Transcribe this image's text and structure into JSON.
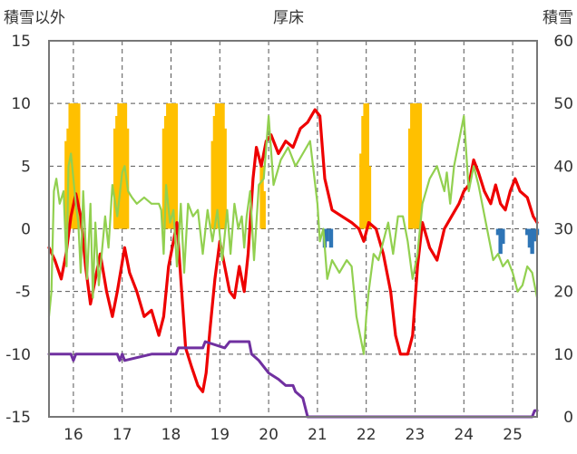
{
  "chart_data": {
    "type": "line",
    "title": "厚床",
    "ylabel_left": "積雪以外",
    "ylabel_right": "積雪",
    "ylim_left": [
      -15,
      15
    ],
    "ylim_right": [
      0,
      60
    ],
    "xlim": [
      15.5,
      25.5
    ],
    "yticks_left": [
      "15",
      "10",
      "5",
      "0",
      "-5",
      "-10",
      "-15"
    ],
    "yticks_right": [
      "60",
      "50",
      "40",
      "30",
      "20",
      "10",
      "0"
    ],
    "xticks": [
      "16",
      "17",
      "18",
      "19",
      "20",
      "21",
      "22",
      "23",
      "24",
      "25"
    ],
    "colors": {
      "red": "#ee0000",
      "green": "#92d050",
      "purple": "#7030a0",
      "orange": "#ffc000",
      "blue": "#2e75b6",
      "grid": "#555555",
      "frame": "#777777"
    },
    "series": [
      {
        "color": "red",
        "axis": "left",
        "x": [
          15.5,
          15.62,
          15.75,
          15.85,
          15.95,
          16.05,
          16.15,
          16.25,
          16.35,
          16.45,
          16.55,
          16.68,
          16.8,
          16.9,
          17.05,
          17.15,
          17.3,
          17.45,
          17.6,
          17.75,
          17.85,
          17.95,
          18.05,
          18.12,
          18.2,
          18.3,
          18.42,
          18.55,
          18.65,
          18.72,
          18.8,
          18.9,
          19.0,
          19.1,
          19.2,
          19.3,
          19.4,
          19.5,
          19.58,
          19.68,
          19.75,
          19.85,
          19.95,
          20.05,
          20.2,
          20.35,
          20.5,
          20.65,
          20.8,
          20.95,
          21.05,
          21.15,
          21.3,
          21.5,
          21.7,
          21.85,
          21.95,
          22.05,
          22.2,
          22.35,
          22.5,
          22.6,
          22.7,
          22.85,
          22.95,
          23.05,
          23.15,
          23.3,
          23.45,
          23.6,
          23.75,
          23.9,
          24.0,
          24.1,
          24.2,
          24.3,
          24.42,
          24.55,
          24.65,
          24.75,
          24.85,
          24.95,
          25.05,
          25.15,
          25.3,
          25.42,
          25.5
        ],
        "y": [
          -1.5,
          -2.5,
          -4.0,
          -2.0,
          1.0,
          2.8,
          1.0,
          -3.0,
          -6.0,
          -4.0,
          -2.0,
          -5.0,
          -7.0,
          -5.0,
          -1.5,
          -3.5,
          -5.0,
          -7.0,
          -6.5,
          -8.5,
          -7.0,
          -3.0,
          -1.0,
          0.5,
          -4.0,
          -9.5,
          -11.0,
          -12.5,
          -13.0,
          -11.5,
          -8.0,
          -4.0,
          -1.0,
          -3.0,
          -5.0,
          -5.5,
          -3.0,
          -5.0,
          -2.0,
          4.0,
          6.5,
          5.0,
          7.0,
          7.5,
          6.0,
          7.0,
          6.5,
          8.0,
          8.5,
          9.5,
          9.0,
          4.0,
          1.5,
          1.0,
          0.5,
          0.0,
          -1.0,
          0.5,
          0.0,
          -2.0,
          -5.0,
          -8.5,
          -10.0,
          -10.0,
          -8.5,
          -3.0,
          0.5,
          -1.5,
          -2.5,
          0.0,
          1.0,
          2.0,
          3.0,
          3.5,
          5.5,
          4.5,
          3.0,
          2.0,
          3.5,
          2.0,
          1.5,
          3.0,
          4.0,
          3.0,
          2.5,
          1.0,
          0.5
        ]
      },
      {
        "color": "green",
        "axis": "left",
        "x": [
          15.5,
          15.55,
          15.6,
          15.65,
          15.72,
          15.8,
          15.86,
          15.9,
          15.95,
          16.0,
          16.05,
          16.1,
          16.15,
          16.2,
          16.28,
          16.35,
          16.4,
          16.45,
          16.52,
          16.58,
          16.65,
          16.72,
          16.8,
          16.9,
          17.0,
          17.05,
          17.12,
          17.2,
          17.3,
          17.45,
          17.6,
          17.75,
          17.8,
          17.85,
          17.9,
          17.98,
          18.05,
          18.12,
          18.2,
          18.27,
          18.35,
          18.45,
          18.55,
          18.65,
          18.75,
          18.85,
          18.95,
          19.05,
          19.15,
          19.22,
          19.3,
          19.38,
          19.45,
          19.5,
          19.55,
          19.62,
          19.7,
          19.8,
          19.9,
          20.0,
          20.1,
          20.25,
          20.4,
          20.55,
          20.7,
          20.85,
          21.0,
          21.05,
          21.12,
          21.2,
          21.3,
          21.45,
          21.6,
          21.7,
          21.8,
          21.9,
          21.95,
          22.0,
          22.05,
          22.15,
          22.25,
          22.35,
          22.45,
          22.55,
          22.65,
          22.75,
          22.85,
          22.95,
          23.05,
          23.15,
          23.3,
          23.45,
          23.6,
          23.65,
          23.72,
          23.8,
          23.9,
          24.0,
          24.1,
          24.2,
          24.3,
          24.45,
          24.6,
          24.7,
          24.8,
          24.9,
          25.0,
          25.1,
          25.2,
          25.3,
          25.4,
          25.5
        ],
        "y": [
          -7.0,
          -5.0,
          3.0,
          4.0,
          2.0,
          3.0,
          -3.0,
          5.0,
          6.0,
          4.0,
          2.0,
          0.5,
          -3.5,
          3.0,
          -4.0,
          2.0,
          -5.5,
          0.5,
          -4.5,
          -2.0,
          1.0,
          -1.5,
          3.5,
          1.0,
          4.5,
          5.0,
          3.0,
          2.5,
          2.0,
          2.5,
          2.0,
          2.0,
          1.5,
          -2.0,
          3.5,
          0.5,
          1.5,
          -3.0,
          2.0,
          -3.5,
          2.0,
          1.0,
          1.5,
          -2.0,
          1.5,
          -1.0,
          1.5,
          -2.5,
          1.5,
          -2.0,
          2.0,
          0.0,
          1.0,
          -1.5,
          1.0,
          3.0,
          -2.5,
          3.5,
          4.0,
          9.0,
          3.5,
          5.5,
          6.5,
          5.0,
          6.0,
          7.0,
          2.0,
          -1.0,
          0.0,
          -4.0,
          -2.5,
          -3.5,
          -2.5,
          -3.0,
          -7.0,
          -9.0,
          -10.0,
          -7.0,
          -5.0,
          -2.0,
          -2.5,
          -1.0,
          0.5,
          -2.0,
          1.0,
          1.0,
          -1.0,
          -4.0,
          -2.0,
          2.0,
          4.0,
          5.0,
          3.0,
          4.5,
          2.0,
          5.0,
          7.0,
          9.0,
          3.0,
          5.0,
          3.5,
          0.5,
          -2.5,
          -2.0,
          -3.0,
          -2.5,
          -3.5,
          -5.0,
          -4.5,
          -3.0,
          -3.5,
          -5.5
        ]
      },
      {
        "color": "purple",
        "axis": "left",
        "x": [
          15.5,
          15.95,
          16.0,
          16.05,
          16.9,
          16.95,
          17.0,
          17.05,
          17.6,
          18.1,
          18.15,
          18.65,
          18.7,
          19.1,
          19.2,
          19.6,
          19.65,
          19.8,
          19.9,
          20.0,
          20.2,
          20.35,
          20.5,
          20.55,
          20.7,
          20.8,
          21.0,
          25.4,
          25.45,
          25.5
        ],
        "y": [
          -10.0,
          -10.0,
          -10.5,
          -10.0,
          -10.0,
          -10.5,
          -10.0,
          -10.5,
          -10.0,
          -10.0,
          -9.5,
          -9.5,
          -9.0,
          -9.5,
          -9.0,
          -9.0,
          -10.0,
          -10.5,
          -11.0,
          -11.5,
          -12.0,
          -12.5,
          -12.5,
          -13.0,
          -13.5,
          -15.0,
          -15.0,
          -15.0,
          -14.5,
          -14.5
        ]
      }
    ],
    "bars": [
      {
        "color": "orange",
        "axis": "right",
        "x": [
          15.86,
          15.9,
          15.94,
          15.98,
          16.02,
          16.06,
          16.1,
          16.86,
          16.9,
          16.94,
          16.98,
          17.02,
          17.06,
          17.1,
          17.86,
          17.9,
          17.94,
          17.98,
          18.02,
          18.06,
          18.1,
          18.86,
          18.9,
          18.94,
          18.98,
          19.02,
          19.06,
          19.1,
          19.86,
          19.9,
          21.9,
          21.94,
          21.98,
          22.02,
          22.06,
          22.9,
          22.94,
          22.98,
          23.02,
          23.06,
          23.1
        ],
        "values": [
          44,
          46,
          50,
          50,
          50,
          50,
          50,
          46,
          48,
          50,
          50,
          50,
          50,
          46,
          46,
          48,
          50,
          50,
          50,
          50,
          50,
          44,
          48,
          50,
          50,
          50,
          50,
          46,
          40,
          36,
          42,
          48,
          50,
          50,
          40,
          46,
          50,
          50,
          50,
          50,
          50
        ]
      },
      {
        "color": "blue",
        "axis": "left",
        "x": [
          21.15,
          21.2,
          21.28,
          24.7,
          24.75,
          24.8,
          25.3,
          25.35,
          25.4,
          25.45,
          25.5
        ],
        "values": [
          -1.5,
          -1.0,
          -1.5,
          -0.5,
          -2.0,
          -1.2,
          -0.5,
          -1.5,
          -2.0,
          -1.0,
          -0.5
        ]
      }
    ]
  }
}
